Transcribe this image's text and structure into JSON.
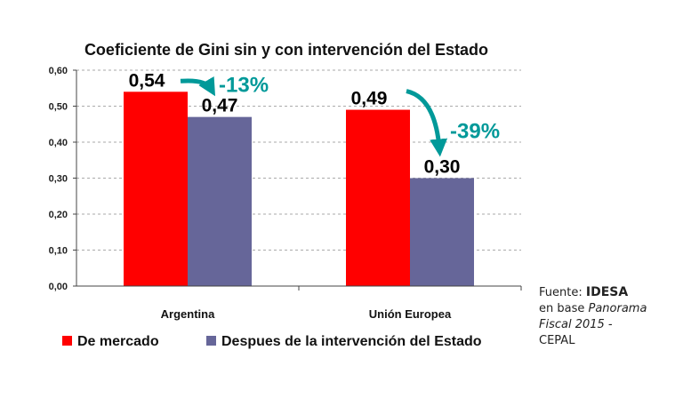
{
  "chart_data": {
    "type": "bar",
    "title": "Coeficiente de Gini sin y con intervención del Estado",
    "categories": [
      "Argentina",
      "Unión Europea"
    ],
    "series": [
      {
        "name": "De mercado",
        "color": "#FF0000",
        "values": [
          0.54,
          0.49
        ],
        "labels": [
          "0,54",
          "0,49"
        ]
      },
      {
        "name": "Despues de la intervención del Estado",
        "color": "#666699",
        "values": [
          0.47,
          0.3
        ],
        "labels": [
          "0,47",
          "0,30"
        ]
      }
    ],
    "ylim": [
      0,
      0.6
    ],
    "yticks": [
      "0,00",
      "0,10",
      "0,20",
      "0,30",
      "0,40",
      "0,50",
      "0,60"
    ],
    "grid": true,
    "legend": "bottom",
    "annotations": [
      {
        "category": "Argentina",
        "text": "-13%",
        "color": "#009999"
      },
      {
        "category": "Unión Europea",
        "text": "-39%",
        "color": "#009999"
      }
    ]
  },
  "source": {
    "prefix": "Fuente: ",
    "org": "IDESA",
    "line2a": "en base ",
    "line2b": "Panorama",
    "line3": "Fiscal 2015 -",
    "line4": "CEPAL"
  }
}
